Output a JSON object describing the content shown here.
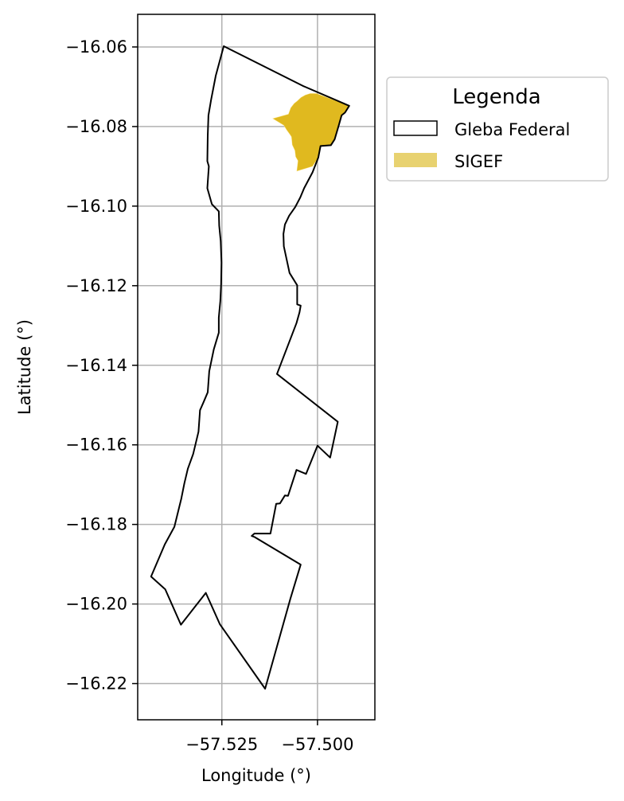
{
  "chart_data": {
    "type": "map",
    "xlabel": "Longitude (°)",
    "ylabel": "Latitude (°)",
    "xlim": [
      -57.547,
      -57.485
    ],
    "ylim": [
      -16.2291,
      -16.0518
    ],
    "grid": true,
    "x_ticks": [
      {
        "value": -57.525,
        "label": "−57.525"
      },
      {
        "value": -57.5,
        "label": "−57.500"
      }
    ],
    "y_ticks": [
      {
        "value": -16.06,
        "label": "−16.06"
      },
      {
        "value": -16.08,
        "label": "−16.08"
      },
      {
        "value": -16.1,
        "label": "−16.10"
      },
      {
        "value": -16.12,
        "label": "−16.12"
      },
      {
        "value": -16.14,
        "label": "−16.14"
      },
      {
        "value": -16.16,
        "label": "−16.16"
      },
      {
        "value": -16.18,
        "label": "−16.18"
      },
      {
        "value": -16.2,
        "label": "−16.20"
      },
      {
        "value": -16.22,
        "label": "−16.22"
      }
    ],
    "legend": {
      "title": "Legenda",
      "placement": "outside-right",
      "entries": [
        {
          "label": "Gleba Federal",
          "style": "outline",
          "color": "#000000"
        },
        {
          "label": "SIGEF",
          "style": "fill",
          "color": "#e8d270"
        }
      ]
    },
    "series": [
      {
        "name": "Gleba Federal",
        "kind": "outline",
        "stroke": "#000000",
        "coords": [
          [
            -57.5245,
            -16.0598
          ],
          [
            -57.5038,
            -16.0698
          ],
          [
            -57.4917,
            -16.0748
          ],
          [
            -57.4928,
            -16.0765
          ],
          [
            -57.4937,
            -16.0772
          ],
          [
            -57.4944,
            -16.0796
          ],
          [
            -57.4955,
            -16.0832
          ],
          [
            -57.4965,
            -16.0847
          ],
          [
            -57.4992,
            -16.0849
          ],
          [
            -57.4998,
            -16.0878
          ],
          [
            -57.5013,
            -16.0915
          ],
          [
            -57.5035,
            -16.0955
          ],
          [
            -57.5045,
            -16.0978
          ],
          [
            -57.5058,
            -16.1002
          ],
          [
            -57.5074,
            -16.1024
          ],
          [
            -57.5085,
            -16.1046
          ],
          [
            -57.5089,
            -16.107
          ],
          [
            -57.5088,
            -16.1101
          ],
          [
            -57.5082,
            -16.1128
          ],
          [
            -57.5073,
            -16.1168
          ],
          [
            -57.5053,
            -16.1199
          ],
          [
            -57.5053,
            -16.1247
          ],
          [
            -57.5044,
            -16.125
          ],
          [
            -57.5047,
            -16.1267
          ],
          [
            -57.5055,
            -16.1294
          ],
          [
            -57.5106,
            -16.1422
          ],
          [
            -57.4947,
            -16.1542
          ],
          [
            -57.4967,
            -16.1632
          ],
          [
            -57.5,
            -16.1602
          ],
          [
            -57.503,
            -16.1673
          ],
          [
            -57.5055,
            -16.1663
          ],
          [
            -57.5077,
            -16.1728
          ],
          [
            -57.5085,
            -16.1727
          ],
          [
            -57.5098,
            -16.1747
          ],
          [
            -57.5108,
            -16.1748
          ],
          [
            -57.5123,
            -16.1823
          ],
          [
            -57.5165,
            -16.1823
          ],
          [
            -57.5172,
            -16.1829
          ],
          [
            -57.5164,
            -16.1832
          ],
          [
            -57.5044,
            -16.1901
          ],
          [
            -57.5071,
            -16.1987
          ],
          [
            -57.5137,
            -16.2213
          ],
          [
            -57.5255,
            -16.2051
          ],
          [
            -57.5292,
            -16.1972
          ],
          [
            -57.5357,
            -16.2052
          ],
          [
            -57.5398,
            -16.1963
          ],
          [
            -57.5435,
            -16.1931
          ],
          [
            -57.5399,
            -16.185
          ],
          [
            -57.5374,
            -16.1806
          ],
          [
            -57.5356,
            -16.1735
          ],
          [
            -57.5348,
            -16.1697
          ],
          [
            -57.5339,
            -16.166
          ],
          [
            -57.5325,
            -16.1623
          ],
          [
            -57.5311,
            -16.1567
          ],
          [
            -57.5307,
            -16.1513
          ],
          [
            -57.5298,
            -16.1493
          ],
          [
            -57.5287,
            -16.1468
          ],
          [
            -57.5283,
            -16.1415
          ],
          [
            -57.5271,
            -16.136
          ],
          [
            -57.5258,
            -16.1318
          ],
          [
            -57.5258,
            -16.128
          ],
          [
            -57.5254,
            -16.1239
          ],
          [
            -57.5252,
            -16.1197
          ],
          [
            -57.5251,
            -16.1142
          ],
          [
            -57.5253,
            -16.1088
          ],
          [
            -57.5257,
            -16.1049
          ],
          [
            -57.5258,
            -16.1013
          ],
          [
            -57.5276,
            -16.0995
          ],
          [
            -57.5288,
            -16.0955
          ],
          [
            -57.5284,
            -16.09
          ],
          [
            -57.5288,
            -16.0887
          ],
          [
            -57.5287,
            -16.0824
          ],
          [
            -57.5285,
            -16.0772
          ],
          [
            -57.5278,
            -16.0732
          ],
          [
            -57.5266,
            -16.0672
          ],
          [
            -57.5245,
            -16.0598
          ]
        ]
      },
      {
        "name": "SIGEF",
        "kind": "fill",
        "fill": "#e0b91f",
        "coords": [
          [
            -57.5019,
            -16.0717
          ],
          [
            -57.5003,
            -16.0717
          ],
          [
            -57.4917,
            -16.0748
          ],
          [
            -57.4928,
            -16.0765
          ],
          [
            -57.4937,
            -16.0772
          ],
          [
            -57.4944,
            -16.0796
          ],
          [
            -57.4955,
            -16.0832
          ],
          [
            -57.4965,
            -16.0847
          ],
          [
            -57.4992,
            -16.0849
          ],
          [
            -57.4998,
            -16.0878
          ],
          [
            -57.5013,
            -16.09
          ],
          [
            -57.5054,
            -16.0912
          ],
          [
            -57.5051,
            -16.0886
          ],
          [
            -57.5057,
            -16.0876
          ],
          [
            -57.5059,
            -16.086
          ],
          [
            -57.5066,
            -16.0846
          ],
          [
            -57.5068,
            -16.0826
          ],
          [
            -57.5072,
            -16.082
          ],
          [
            -57.5081,
            -16.0808
          ],
          [
            -57.5088,
            -16.0797
          ],
          [
            -57.5117,
            -16.078
          ],
          [
            -57.5076,
            -16.0769
          ],
          [
            -57.507,
            -16.0753
          ],
          [
            -57.5061,
            -16.0742
          ],
          [
            -57.5053,
            -16.0736
          ],
          [
            -57.5043,
            -16.0727
          ],
          [
            -57.5032,
            -16.0721
          ],
          [
            -57.5019,
            -16.0717
          ]
        ]
      }
    ]
  }
}
